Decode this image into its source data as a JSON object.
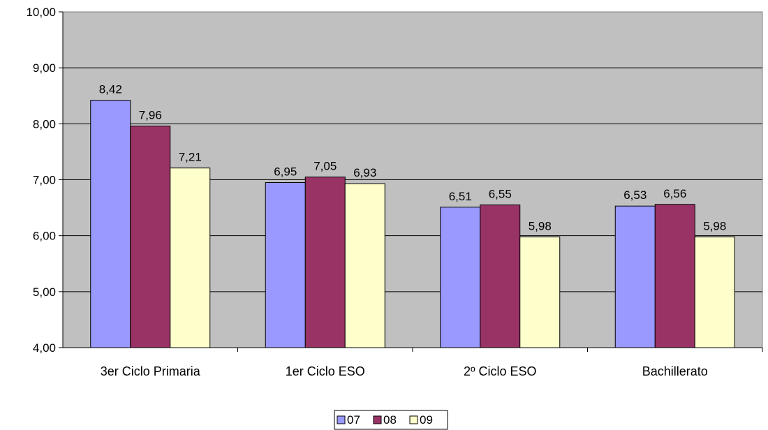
{
  "chart_data": {
    "type": "bar",
    "title": "",
    "xlabel": "",
    "ylabel": "",
    "categories": [
      "3er Ciclo Primaria",
      "1er Ciclo ESO",
      "2º Ciclo ESO",
      "Bachillerato"
    ],
    "series": [
      {
        "name": "07",
        "values": [
          8.42,
          6.95,
          6.51,
          6.53
        ],
        "color": "#9999ff"
      },
      {
        "name": "08",
        "values": [
          7.96,
          7.05,
          6.55,
          6.56
        ],
        "color": "#993366"
      },
      {
        "name": "09",
        "values": [
          7.21,
          6.93,
          5.98,
          5.98
        ],
        "color": "#ffffcc"
      }
    ],
    "data_labels": [
      [
        "8,42",
        "6,95",
        "6,51",
        "6,53"
      ],
      [
        "7,96",
        "7,05",
        "6,55",
        "6,56"
      ],
      [
        "7,21",
        "6,93",
        "5,98",
        "5,98"
      ]
    ],
    "ylim": [
      4,
      10
    ],
    "yticks": [
      4,
      5,
      6,
      7,
      8,
      9,
      10
    ],
    "ytick_labels": [
      "4,00",
      "5,00",
      "6,00",
      "7,00",
      "8,00",
      "9,00",
      "10,00"
    ],
    "grid": true,
    "legend_position": "bottom",
    "plot_background": "#c0c0c0"
  }
}
